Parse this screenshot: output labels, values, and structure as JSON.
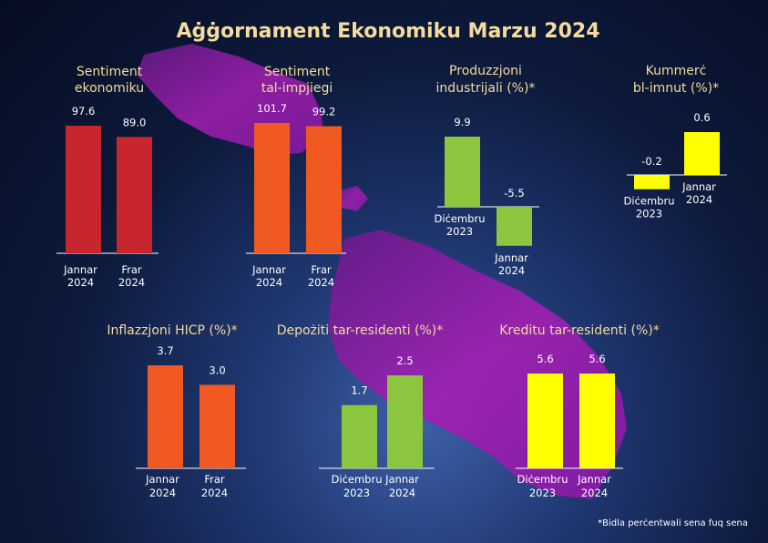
{
  "title": "Aġġornament Ekonomiku Marzu 2024",
  "footnote": "*Bidla perċentwali sena fuq sena",
  "colors": {
    "background": "#0d1a3c",
    "title": "#f3dc9d",
    "map": "#a01fb0",
    "red": "#c8262e",
    "orange": "#f05a22",
    "green": "#8cc63f",
    "yellow": "#ffff00"
  },
  "chart_data": [
    {
      "type": "bar",
      "title": "Sentiment ekonomiku",
      "title_lines": [
        "Sentiment",
        "ekonomiku"
      ],
      "categories": [
        [
          "Jannar",
          "2024"
        ],
        [
          "Frar",
          "2024"
        ]
      ],
      "values": [
        97.6,
        89.0
      ],
      "labels": [
        "97.6",
        "89.0"
      ],
      "color": "#c8262e"
    },
    {
      "type": "bar",
      "title": "Sentiment tal-impjiegi",
      "title_lines": [
        "Sentiment",
        "tal-impjiegi"
      ],
      "categories": [
        [
          "Jannar",
          "2024"
        ],
        [
          "Frar",
          "2024"
        ]
      ],
      "values": [
        101.7,
        99.2
      ],
      "labels": [
        "101.7",
        "99.2"
      ],
      "color": "#f05a22"
    },
    {
      "type": "bar",
      "title": "Produzzjoni industrijali (%)*",
      "title_lines": [
        "Produzzjoni",
        "industrijali (%)*"
      ],
      "categories": [
        [
          "Diċembru",
          "2023"
        ],
        [
          "Jannar",
          "2024"
        ]
      ],
      "values": [
        9.9,
        -5.5
      ],
      "labels": [
        "9.9",
        "-5.5"
      ],
      "color": "#8cc63f"
    },
    {
      "type": "bar",
      "title": "Kummerċ bl-imnut (%)*",
      "title_lines": [
        "Kummerċ",
        "bl-imnut (%)*"
      ],
      "categories": [
        [
          "Diċembru",
          "2023"
        ],
        [
          "Jannar",
          "2024"
        ]
      ],
      "values": [
        -0.2,
        0.6
      ],
      "labels": [
        "-0.2",
        "0.6"
      ],
      "color": "#ffff00"
    },
    {
      "type": "bar",
      "title": "Inflazzjoni HICP (%)*",
      "title_lines": [
        "Inflazzjoni HICP (%)*"
      ],
      "categories": [
        [
          "Jannar",
          "2024"
        ],
        [
          "Frar",
          "2024"
        ]
      ],
      "values": [
        3.7,
        3.0
      ],
      "labels": [
        "3.7",
        "3.0"
      ],
      "color": "#f05a22"
    },
    {
      "type": "bar",
      "title": "Depożiti tar-residenti (%)*",
      "title_lines": [
        "Depożiti tar-residenti (%)*"
      ],
      "categories": [
        [
          "Diċembru",
          "2023"
        ],
        [
          "Jannar",
          "2024"
        ]
      ],
      "values": [
        1.7,
        2.5
      ],
      "labels": [
        "1.7",
        "2.5"
      ],
      "color": "#8cc63f"
    },
    {
      "type": "bar",
      "title": "Kreditu tar-residenti (%)*",
      "title_lines": [
        "Kreditu tar-residenti (%)*"
      ],
      "categories": [
        [
          "Diċembru",
          "2023"
        ],
        [
          "Jannar",
          "2024"
        ]
      ],
      "values": [
        5.6,
        5.6
      ],
      "labels": [
        "5.6",
        "5.6"
      ],
      "color": "#ffff00"
    }
  ]
}
